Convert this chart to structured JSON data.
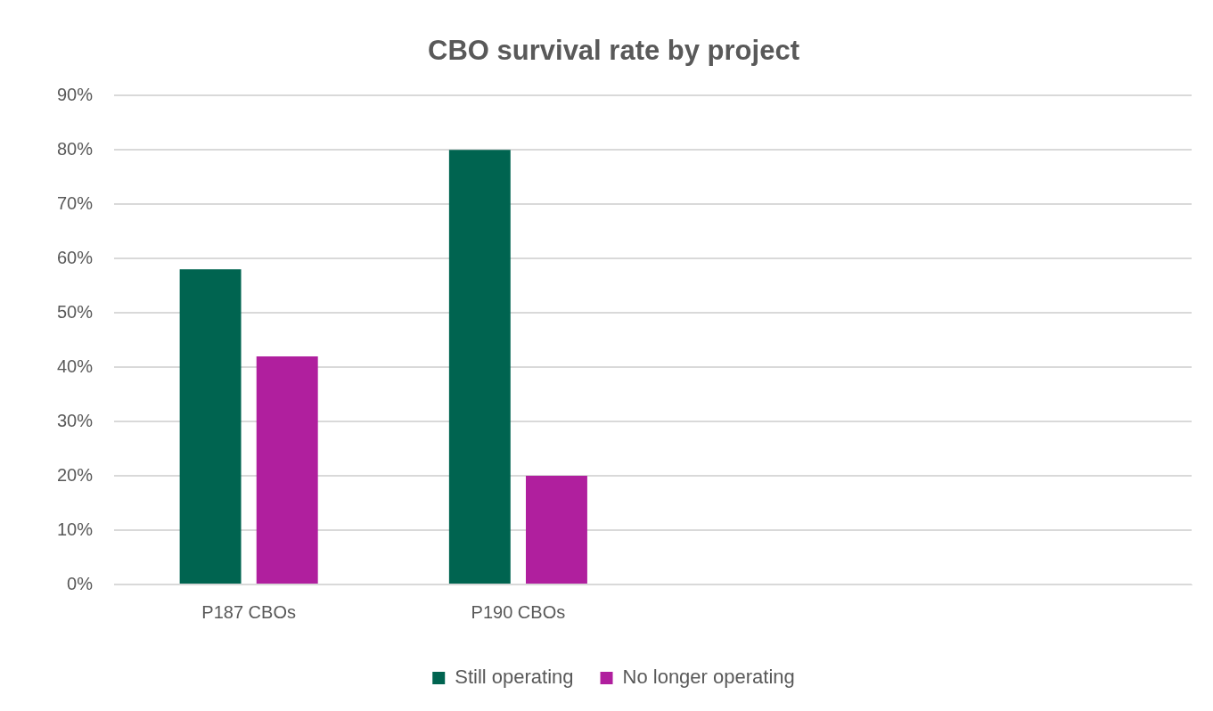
{
  "chart_data": {
    "type": "bar",
    "title": "CBO survival rate by project",
    "categories": [
      "P187 CBOs",
      "P190 CBOs",
      null,
      null
    ],
    "series": [
      {
        "name": "Still operating",
        "color": "#006450",
        "values": [
          58,
          80,
          null,
          null
        ]
      },
      {
        "name": "No longer operating",
        "color": "#b01f9e",
        "values": [
          42,
          20,
          null,
          null
        ]
      }
    ],
    "ylim": [
      0,
      90
    ],
    "yticks": [
      {
        "value": 0,
        "label": "0%"
      },
      {
        "value": 10,
        "label": "10%"
      },
      {
        "value": 20,
        "label": "20%"
      },
      {
        "value": 30,
        "label": "30%"
      },
      {
        "value": 40,
        "label": "40%"
      },
      {
        "value": 50,
        "label": "50%"
      },
      {
        "value": 60,
        "label": "60%"
      },
      {
        "value": 70,
        "label": "70%"
      },
      {
        "value": 80,
        "label": "80%"
      },
      {
        "value": 90,
        "label": "90%"
      }
    ],
    "grid": "y",
    "legend": "bottom"
  }
}
